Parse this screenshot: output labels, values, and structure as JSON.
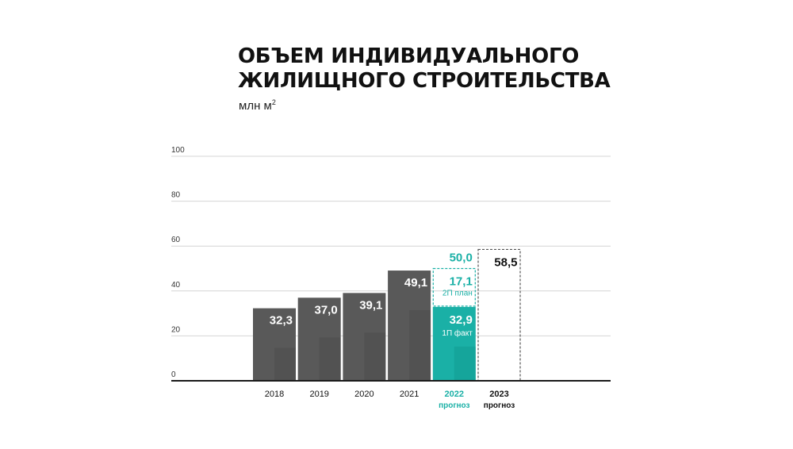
{
  "title": "ОБЪЕМ ИНДИВИДУАЛЬНОГО\nЖИЛИЩНОГО СТРОИТЕЛЬСТВА",
  "unit": {
    "text": "млн м",
    "sup": "2"
  },
  "colors": {
    "bar": "#595959",
    "accent": "#1ab0a6",
    "accent_dark": "#0f9990",
    "ink": "#111111",
    "grid": "#d4d4d4"
  },
  "chart_data": {
    "type": "bar",
    "title": "ОБЪЕМ ИНДИВИДУАЛЬНОГО ЖИЛИЩНОГО СТРОИТЕЛЬСТВА",
    "ylabel": "млн м²",
    "ylim": [
      0,
      100
    ],
    "y_ticks": [
      "0",
      "20",
      "40",
      "60",
      "80",
      "100"
    ],
    "grid": true,
    "bars": [
      {
        "category": "2018",
        "value": 32.3,
        "label": "32,3",
        "style": "solid"
      },
      {
        "category": "2019",
        "value": 37.0,
        "label": "37,0",
        "style": "solid"
      },
      {
        "category": "2020",
        "value": 39.1,
        "label": "39,1",
        "style": "solid"
      },
      {
        "category": "2021",
        "value": 49.1,
        "label": "49,1",
        "style": "solid"
      },
      {
        "category": "2022",
        "sublabel": "прогноз",
        "value": 50.0,
        "label": "50,0",
        "style": "stacked-accent",
        "segments": [
          {
            "value": 32.9,
            "label": "32,9",
            "note": "1П факт",
            "style": "filled"
          },
          {
            "value": 17.1,
            "label": "17,1",
            "note": "2П план",
            "style": "dashed"
          }
        ]
      },
      {
        "category": "2023",
        "sublabel": "прогноз",
        "value": 58.5,
        "label": "58,5",
        "style": "dashed"
      }
    ]
  }
}
